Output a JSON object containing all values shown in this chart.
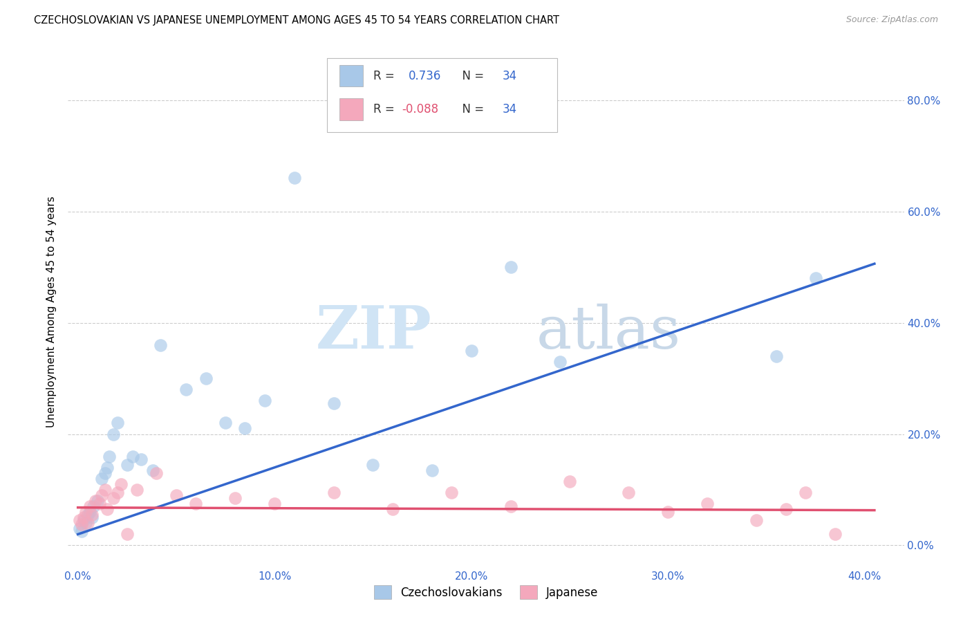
{
  "title": "CZECHOSLOVAKIAN VS JAPANESE UNEMPLOYMENT AMONG AGES 45 TO 54 YEARS CORRELATION CHART",
  "source": "Source: ZipAtlas.com",
  "ylabel": "Unemployment Among Ages 45 to 54 years",
  "blue_color": "#A8C8E8",
  "pink_color": "#F4A8BC",
  "blue_line_color": "#3366CC",
  "pink_line_color": "#E05070",
  "watermark_zip": "ZIP",
  "watermark_atlas": "atlas",
  "xlim": [
    -0.005,
    0.42
  ],
  "ylim": [
    -0.04,
    0.88
  ],
  "xtick_vals": [
    0.0,
    0.1,
    0.2,
    0.3,
    0.4
  ],
  "xtick_labels": [
    "0.0%",
    "10.0%",
    "20.0%",
    "30.0%",
    "40.0%"
  ],
  "ytick_vals": [
    0.0,
    0.2,
    0.4,
    0.6,
    0.8
  ],
  "ytick_labels": [
    "0.0%",
    "20.0%",
    "40.0%",
    "60.0%",
    "80.0%"
  ],
  "blue_slope": 1.2,
  "blue_intercept": 0.02,
  "pink_slope": -0.012,
  "pink_intercept": 0.068,
  "czecho_x": [
    0.001,
    0.002,
    0.003,
    0.004,
    0.005,
    0.006,
    0.007,
    0.008,
    0.01,
    0.012,
    0.014,
    0.015,
    0.016,
    0.018,
    0.02,
    0.025,
    0.028,
    0.032,
    0.038,
    0.042,
    0.055,
    0.065,
    0.075,
    0.085,
    0.095,
    0.11,
    0.13,
    0.15,
    0.18,
    0.2,
    0.22,
    0.245,
    0.355,
    0.375
  ],
  "czecho_y": [
    0.03,
    0.025,
    0.045,
    0.04,
    0.055,
    0.06,
    0.05,
    0.07,
    0.08,
    0.12,
    0.13,
    0.14,
    0.16,
    0.2,
    0.22,
    0.145,
    0.16,
    0.155,
    0.135,
    0.36,
    0.28,
    0.3,
    0.22,
    0.21,
    0.26,
    0.66,
    0.255,
    0.145,
    0.135,
    0.35,
    0.5,
    0.33,
    0.34,
    0.48
  ],
  "japan_x": [
    0.001,
    0.002,
    0.003,
    0.004,
    0.005,
    0.006,
    0.007,
    0.009,
    0.011,
    0.012,
    0.014,
    0.015,
    0.018,
    0.02,
    0.022,
    0.025,
    0.03,
    0.04,
    0.05,
    0.06,
    0.08,
    0.1,
    0.13,
    0.16,
    0.19,
    0.22,
    0.25,
    0.28,
    0.3,
    0.32,
    0.345,
    0.36,
    0.37,
    0.385
  ],
  "japan_y": [
    0.045,
    0.038,
    0.05,
    0.06,
    0.04,
    0.07,
    0.055,
    0.08,
    0.075,
    0.09,
    0.1,
    0.065,
    0.085,
    0.095,
    0.11,
    0.02,
    0.1,
    0.13,
    0.09,
    0.075,
    0.085,
    0.075,
    0.095,
    0.065,
    0.095,
    0.07,
    0.115,
    0.095,
    0.06,
    0.075,
    0.045,
    0.065,
    0.095,
    0.02
  ],
  "legend_labels": [
    "Czechoslovakians",
    "Japanese"
  ]
}
